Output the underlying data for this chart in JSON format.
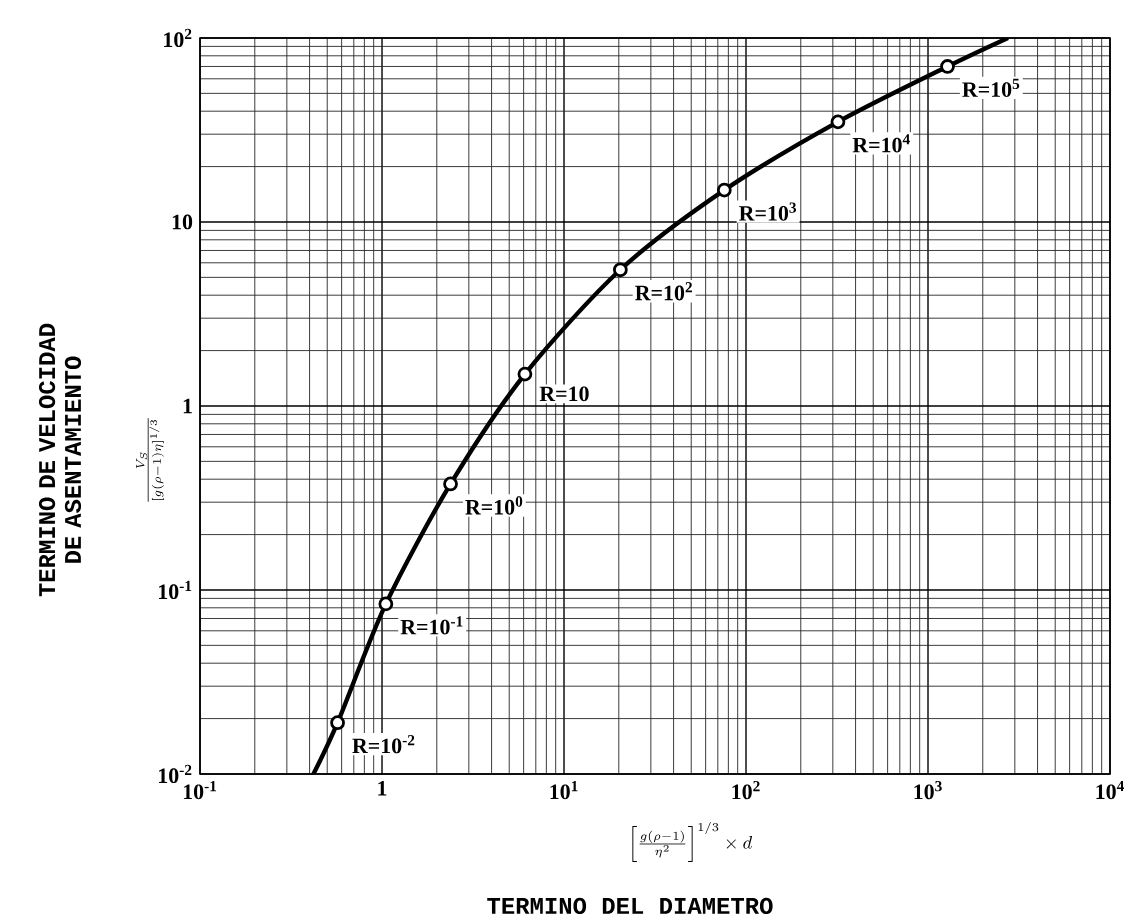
{
  "chart_data": {
    "type": "line",
    "xlabel": "TERMINO DEL DIAMETRO",
    "ylabel": "TERMINO DE VELOCIDAD DE ASENTAMIENTO",
    "log": "xy",
    "grid": true,
    "marker": "circle",
    "xlim": [
      0.1,
      10000
    ],
    "ylim": [
      0.01,
      100
    ],
    "xticks": [
      {
        "value": 0.1,
        "label": "10$^{-1}$"
      },
      1,
      {
        "value": 10,
        "label": "10$^{1}$"
      },
      {
        "value": 100,
        "label": "10$^{2}$"
      },
      {
        "value": 1000,
        "label": "10$^{3}$"
      },
      {
        "value": 10000,
        "label": "10$^{4}$"
      }
    ],
    "yticks": [
      {
        "value": 0.01,
        "label": "10$^{-2}$"
      },
      {
        "value": 0.1,
        "label": "10$^{-1}$"
      },
      1,
      10,
      {
        "value": 100,
        "label": "10$^{2}$"
      }
    ],
    "series": [
      {
        "type": "line",
        "color": "#000000",
        "line_style": "solid",
        "marker": "none",
        "x": [
          0.42,
          0.57,
          1.05,
          2.38,
          6.1,
          20.4,
          76,
          320,
          1280,
          2750
        ],
        "values": [
          0.01,
          0.019,
          0.084,
          0.377,
          1.49,
          5.5,
          14.9,
          35,
          70,
          100
        ]
      },
      {
        "type": "scatter",
        "color": "#000000",
        "x": [
          0.57,
          1.05,
          2.38,
          6.1,
          20.4,
          76,
          320,
          1280
        ],
        "values": [
          0.019,
          0.084,
          0.377,
          1.49,
          5.5,
          14.9,
          35,
          70
        ]
      }
    ],
    "annotations": [
      {
        "text": "R=10$^{-2}$",
        "x": 0.57,
        "y": 0.019
      },
      {
        "text": "R=10$^{-1}$",
        "x": 1.05,
        "y": 0.084
      },
      {
        "text": "R=10$^{0}$",
        "x": 2.38,
        "y": 0.377
      },
      {
        "text": "R=10",
        "x": 6.1,
        "y": 1.49
      },
      {
        "text": "R=10$^{2}$",
        "x": 20.4,
        "y": 5.5
      },
      {
        "text": "R=10$^{3}$",
        "x": 76,
        "y": 14.9
      },
      {
        "text": "R=10$^{4}$",
        "x": 320,
        "y": 35
      },
      {
        "text": "R=10$^{5}$",
        "x": 1280,
        "y": 70
      },
      "\\frac{V_S}{\\left[g(\\rho-1)\\eta\\right]^{1/3}}",
      "\\left[\\frac{g(\\rho-1)}{\\eta^{2}}\\right]^{1/3}\\times d"
    ]
  }
}
